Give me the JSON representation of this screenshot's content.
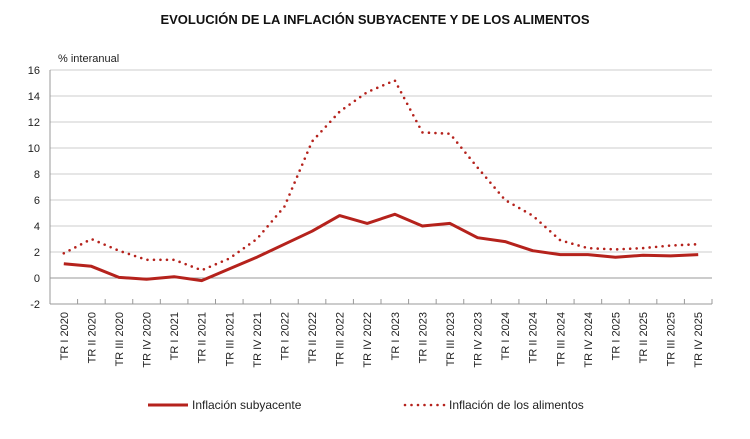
{
  "chart_data": {
    "type": "line",
    "title": "EVOLUCIÓN DE LA INFLACIÓN SUBYACENTE Y DE LOS ALIMENTOS",
    "ylabel": "% interanual",
    "xlabel": "",
    "ylim": [
      -2,
      16
    ],
    "yticks": [
      -2,
      0,
      2,
      4,
      6,
      8,
      10,
      12,
      14,
      16
    ],
    "grid": true,
    "legend_placement": "bottom",
    "categories": [
      "TR I 2020",
      "TR II 2020",
      "TR III 2020",
      "TR IV 2020",
      "TR I 2021",
      "TR II 2021",
      "TR III 2021",
      "TR IV 2021",
      "TR I 2022",
      "TR II 2022",
      "TR III 2022",
      "TR IV 2022",
      "TR I 2023",
      "TR II 2023",
      "TR III 2023",
      "TR IV 2023",
      "TR I 2024",
      "TR II 2024",
      "TR III 2024",
      "TR IV 2024",
      "TR I 2025",
      "TR II 2025",
      "TR III 2025",
      "TR IV 2025"
    ],
    "series": [
      {
        "name": "Inflación subyacente",
        "style": "solid",
        "color": "#b5221c",
        "values": [
          1.1,
          0.9,
          0.05,
          -0.1,
          0.1,
          -0.2,
          0.7,
          1.6,
          2.6,
          3.6,
          4.8,
          4.2,
          4.9,
          4.0,
          4.2,
          3.1,
          2.8,
          2.1,
          1.8,
          1.8,
          1.6,
          1.75,
          1.7,
          1.8
        ]
      },
      {
        "name": "Inflación de los alimentos",
        "style": "dotted",
        "color": "#b5221c",
        "values": [
          1.9,
          3.0,
          2.1,
          1.4,
          1.4,
          0.6,
          1.5,
          3.0,
          5.5,
          10.5,
          12.8,
          14.3,
          15.2,
          11.2,
          11.1,
          8.5,
          6.0,
          4.8,
          2.9,
          2.3,
          2.2,
          2.3,
          2.5,
          2.6
        ]
      }
    ]
  }
}
